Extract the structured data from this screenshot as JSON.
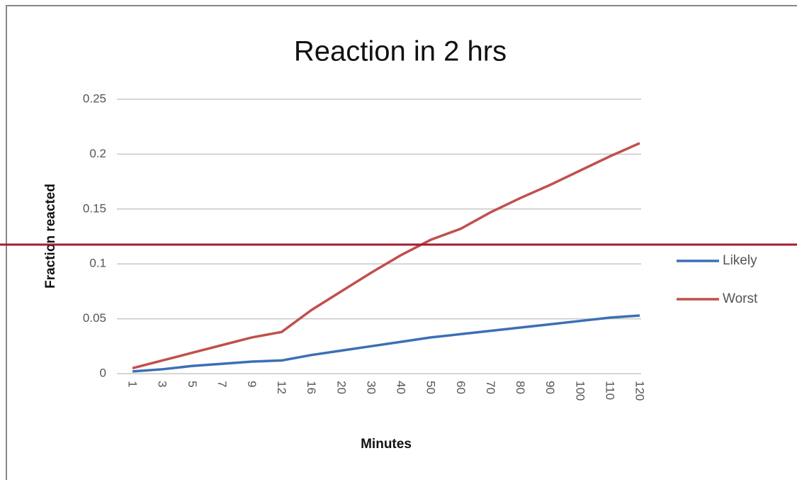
{
  "chart_data": {
    "type": "line",
    "title": "Reaction in 2 hrs",
    "x_label": "Minutes",
    "y_label": "Fraction reacted",
    "categories": [
      "1",
      "3",
      "5",
      "7",
      "9",
      "12",
      "16",
      "20",
      "30",
      "40",
      "50",
      "60",
      "70",
      "80",
      "90",
      "100",
      "110",
      "120"
    ],
    "series": [
      {
        "name": "Likely",
        "color": "#3c6fb5",
        "values": [
          0.002,
          0.004,
          0.007,
          0.009,
          0.011,
          0.012,
          0.017,
          0.021,
          0.025,
          0.029,
          0.033,
          0.036,
          0.039,
          0.042,
          0.045,
          0.048,
          0.051,
          0.053
        ]
      },
      {
        "name": "Worst",
        "color": "#c0504d",
        "values": [
          0.005,
          0.012,
          0.019,
          0.026,
          0.033,
          0.038,
          0.058,
          0.075,
          0.092,
          0.108,
          0.122,
          0.132,
          0.147,
          0.16,
          0.172,
          0.185,
          0.198,
          0.21
        ]
      }
    ],
    "ylim": [
      0,
      0.25
    ],
    "yticks": [
      0,
      0.05,
      0.1,
      0.15,
      0.2,
      0.25
    ],
    "grid": true,
    "legend": "right"
  }
}
